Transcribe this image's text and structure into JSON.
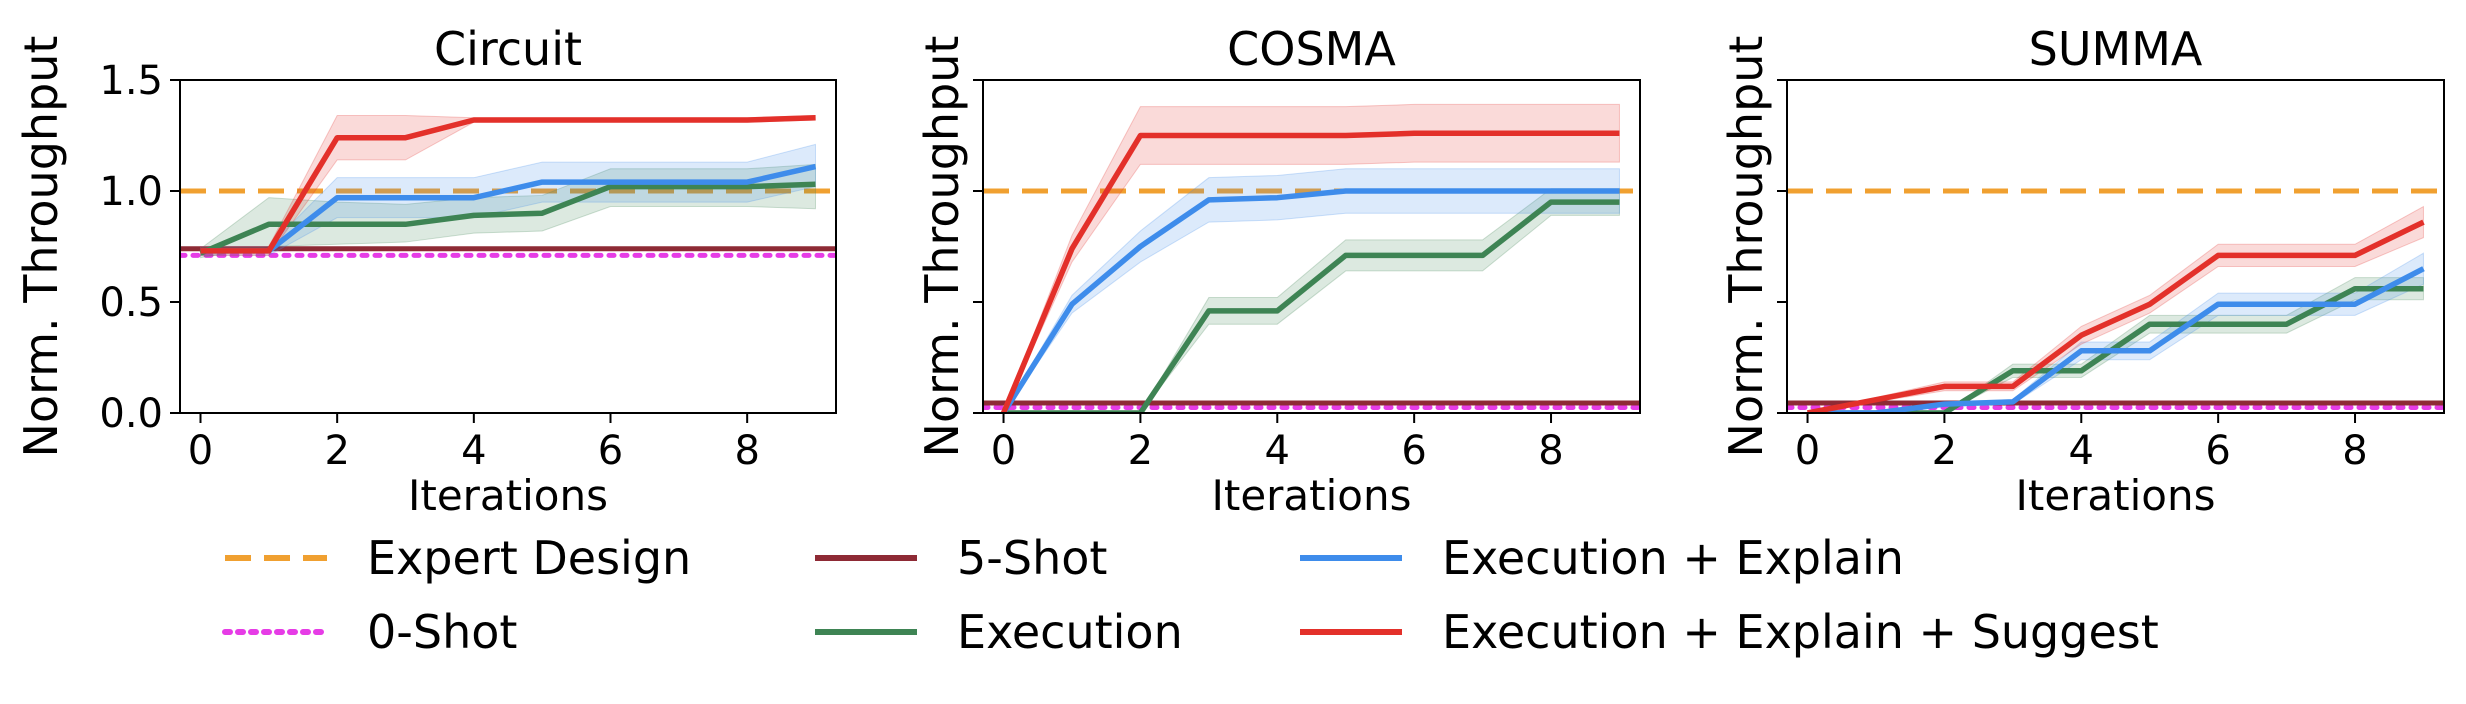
{
  "colors": {
    "expert": "#F0A030",
    "zero_shot": "#E63CE6",
    "five_shot": "#8E2A35",
    "execution": "#3E8454",
    "explain": "#3E8CEB",
    "suggest": "#E3302A"
  },
  "legend": {
    "items": [
      {
        "key": "expert",
        "label": "Expert Design",
        "style": "dashed"
      },
      {
        "key": "zero_shot",
        "label": "0-Shot",
        "style": "dotted"
      },
      {
        "key": "five_shot",
        "label": "5-Shot",
        "style": "solid"
      },
      {
        "key": "execution",
        "label": "Execution",
        "style": "solid"
      },
      {
        "key": "explain",
        "label": "Execution + Explain",
        "style": "solid"
      },
      {
        "key": "suggest",
        "label": "Execution + Explain + Suggest",
        "style": "solid"
      }
    ]
  },
  "chart_data": [
    {
      "type": "line",
      "title": "Circuit",
      "xlabel": "Iterations",
      "ylabel": "Norm. Throughput",
      "xlim": [
        -0.3,
        9.3
      ],
      "ylim": [
        0,
        1.5
      ],
      "xticks": [
        0,
        2,
        4,
        6,
        8
      ],
      "yticks": [
        0.0,
        0.5,
        1.0,
        1.5
      ],
      "ytick_labels": [
        "0.0",
        "0.5",
        "1.0",
        "1.5"
      ],
      "x": [
        0,
        1,
        2,
        3,
        4,
        5,
        6,
        7,
        8,
        9
      ],
      "baselines": [
        {
          "key": "expert",
          "name": "Expert Design",
          "value": 1.0
        },
        {
          "key": "zero_shot",
          "name": "0-Shot",
          "value": 0.71
        },
        {
          "key": "five_shot",
          "name": "5-Shot",
          "value": 0.74
        }
      ],
      "series": [
        {
          "key": "execution",
          "name": "Execution",
          "values": [
            0.72,
            0.85,
            0.85,
            0.85,
            0.89,
            0.9,
            1.02,
            1.02,
            1.02,
            1.03
          ],
          "lower": [
            0.7,
            0.75,
            0.76,
            0.77,
            0.81,
            0.82,
            0.93,
            0.93,
            0.93,
            0.92
          ],
          "upper": [
            0.74,
            0.97,
            0.95,
            0.94,
            0.97,
            0.98,
            1.1,
            1.1,
            1.1,
            1.12
          ]
        },
        {
          "key": "explain",
          "name": "Execution + Explain",
          "values": [
            0.73,
            0.73,
            0.97,
            0.97,
            0.97,
            1.04,
            1.04,
            1.04,
            1.04,
            1.11
          ],
          "lower": [
            0.71,
            0.71,
            0.88,
            0.88,
            0.88,
            0.95,
            0.95,
            0.95,
            0.95,
            1.02
          ],
          "upper": [
            0.75,
            0.75,
            1.06,
            1.06,
            1.06,
            1.13,
            1.13,
            1.13,
            1.13,
            1.21
          ]
        },
        {
          "key": "suggest",
          "name": "Execution + Explain + Suggest",
          "values": [
            0.73,
            0.73,
            1.24,
            1.24,
            1.32,
            1.32,
            1.32,
            1.32,
            1.32,
            1.33
          ],
          "lower": [
            0.71,
            0.71,
            1.14,
            1.14,
            1.31,
            1.31,
            1.31,
            1.31,
            1.31,
            1.32
          ],
          "upper": [
            0.75,
            0.75,
            1.34,
            1.34,
            1.33,
            1.33,
            1.33,
            1.33,
            1.33,
            1.34
          ]
        }
      ]
    },
    {
      "type": "line",
      "title": "COSMA",
      "xlabel": "Iterations",
      "ylabel": "Norm. Throughput",
      "xlim": [
        -0.3,
        9.3
      ],
      "ylim": [
        0,
        1.5
      ],
      "xticks": [
        0,
        2,
        4,
        6,
        8
      ],
      "yticks": [
        0.0,
        0.5,
        1.0,
        1.5
      ],
      "ytick_labels": [
        "",
        "",
        "",
        ""
      ],
      "x": [
        0,
        1,
        2,
        3,
        4,
        5,
        6,
        7,
        8,
        9
      ],
      "baselines": [
        {
          "key": "expert",
          "name": "Expert Design",
          "value": 1.0
        },
        {
          "key": "zero_shot",
          "name": "0-Shot",
          "value": 0.025
        },
        {
          "key": "five_shot",
          "name": "5-Shot",
          "value": 0.045
        }
      ],
      "series": [
        {
          "key": "execution",
          "name": "Execution",
          "values": [
            0.0,
            0.0,
            0.0,
            0.46,
            0.46,
            0.71,
            0.71,
            0.71,
            0.95,
            0.95
          ],
          "lower": [
            0.0,
            0.0,
            0.0,
            0.4,
            0.4,
            0.64,
            0.64,
            0.64,
            0.89,
            0.89
          ],
          "upper": [
            0.0,
            0.0,
            0.0,
            0.52,
            0.52,
            0.78,
            0.78,
            0.78,
            1.01,
            1.01
          ]
        },
        {
          "key": "explain",
          "name": "Execution + Explain",
          "values": [
            0.0,
            0.49,
            0.75,
            0.96,
            0.97,
            1.0,
            1.0,
            1.0,
            1.0,
            1.0
          ],
          "lower": [
            0.0,
            0.45,
            0.68,
            0.86,
            0.87,
            0.9,
            0.9,
            0.9,
            0.9,
            0.9
          ],
          "upper": [
            0.0,
            0.53,
            0.82,
            1.06,
            1.07,
            1.1,
            1.1,
            1.1,
            1.1,
            1.1
          ]
        },
        {
          "key": "suggest",
          "name": "Execution + Explain + Suggest",
          "values": [
            0.0,
            0.74,
            1.25,
            1.25,
            1.25,
            1.25,
            1.26,
            1.26,
            1.26,
            1.26
          ],
          "lower": [
            0.0,
            0.68,
            1.12,
            1.12,
            1.12,
            1.12,
            1.13,
            1.13,
            1.13,
            1.13
          ],
          "upper": [
            0.0,
            0.8,
            1.38,
            1.38,
            1.38,
            1.38,
            1.39,
            1.39,
            1.39,
            1.39
          ]
        }
      ]
    },
    {
      "type": "line",
      "title": "SUMMA",
      "xlabel": "Iterations",
      "ylabel": "Norm. Throughput",
      "xlim": [
        -0.3,
        9.3
      ],
      "ylim": [
        0,
        1.5
      ],
      "xticks": [
        0,
        2,
        4,
        6,
        8
      ],
      "yticks": [
        0.0,
        0.5,
        1.0,
        1.5
      ],
      "ytick_labels": [
        "",
        "",
        "",
        ""
      ],
      "x": [
        0,
        1,
        2,
        3,
        4,
        5,
        6,
        7,
        8,
        9
      ],
      "baselines": [
        {
          "key": "expert",
          "name": "Expert Design",
          "value": 1.0
        },
        {
          "key": "zero_shot",
          "name": "0-Shot",
          "value": 0.025
        },
        {
          "key": "five_shot",
          "name": "5-Shot",
          "value": 0.045
        }
      ],
      "series": [
        {
          "key": "execution",
          "name": "Execution",
          "values": [
            0.0,
            0.0,
            0.0,
            0.19,
            0.19,
            0.4,
            0.4,
            0.4,
            0.56,
            0.56
          ],
          "lower": [
            0.0,
            0.0,
            0.0,
            0.16,
            0.16,
            0.36,
            0.36,
            0.36,
            0.51,
            0.51
          ],
          "upper": [
            0.0,
            0.0,
            0.0,
            0.22,
            0.22,
            0.44,
            0.44,
            0.44,
            0.61,
            0.61
          ]
        },
        {
          "key": "explain",
          "name": "Execution + Explain",
          "values": [
            0.0,
            0.0,
            0.04,
            0.05,
            0.28,
            0.28,
            0.49,
            0.49,
            0.49,
            0.65
          ],
          "lower": [
            0.0,
            0.0,
            0.03,
            0.04,
            0.24,
            0.24,
            0.44,
            0.44,
            0.44,
            0.58
          ],
          "upper": [
            0.0,
            0.0,
            0.05,
            0.06,
            0.32,
            0.32,
            0.54,
            0.54,
            0.54,
            0.72
          ]
        },
        {
          "key": "suggest",
          "name": "Execution + Explain + Suggest",
          "values": [
            0.0,
            0.06,
            0.12,
            0.12,
            0.35,
            0.49,
            0.71,
            0.71,
            0.71,
            0.86
          ],
          "lower": [
            0.0,
            0.05,
            0.1,
            0.1,
            0.31,
            0.45,
            0.66,
            0.66,
            0.66,
            0.79
          ],
          "upper": [
            0.0,
            0.07,
            0.14,
            0.14,
            0.39,
            0.53,
            0.76,
            0.76,
            0.76,
            0.93
          ]
        }
      ]
    }
  ]
}
